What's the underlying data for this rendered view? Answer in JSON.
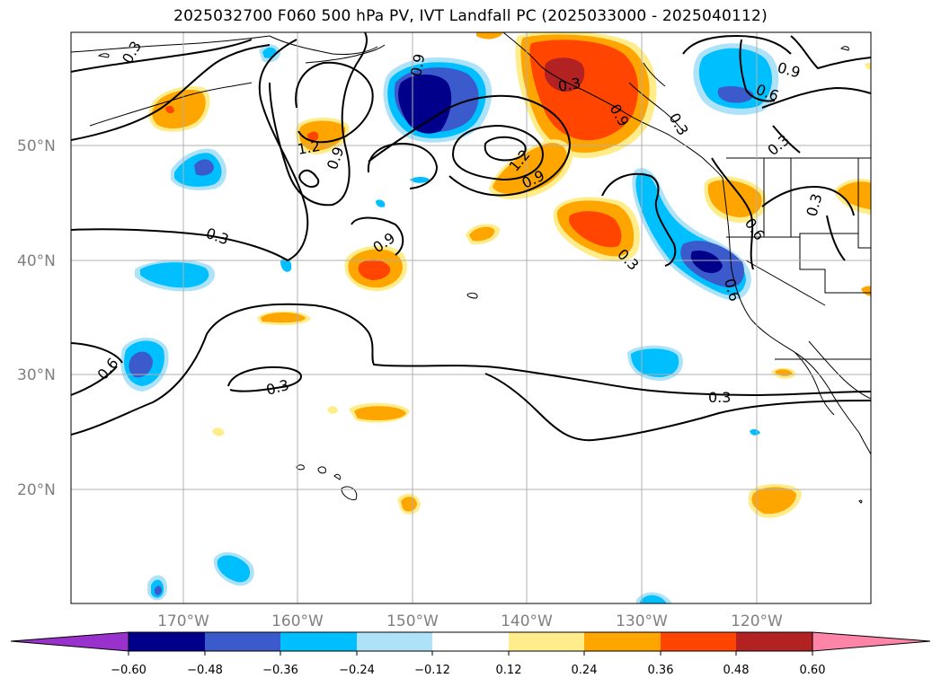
{
  "title": "2025032700 F060 500 hPa PV, IVT Landfall PC (2025033000 - 2025040112)",
  "map": {
    "lat_labels": [
      "50°N",
      "40°N",
      "30°N",
      "20°N"
    ],
    "lon_labels": [
      "170°W",
      "160°W",
      "150°W",
      "140°W",
      "130°W",
      "120°W"
    ],
    "contour_labels": [
      "0.3",
      "0.9",
      "1.2",
      "0.9",
      "0.3",
      "0.9",
      "0.3",
      "0.6",
      "0.9",
      "0.6",
      "0.3",
      "0.3",
      "0.3",
      "0.6",
      "0.9",
      "0.3",
      "0.3",
      "0.6",
      "0.9",
      "1.2",
      "0.3"
    ],
    "grid": true
  },
  "colorbar": {
    "ticks": [
      "−0.60",
      "−0.48",
      "−0.36",
      "−0.24",
      "−0.12",
      "0.12",
      "0.24",
      "0.36",
      "0.48",
      "0.60"
    ],
    "colors": [
      "#9932cc",
      "#00008b",
      "#3b5bcc",
      "#00bfff",
      "#aee2f8",
      "#ffffff",
      "#ffec8b",
      "#ffa500",
      "#ff4500",
      "#b22222",
      "#ff85a8"
    ]
  },
  "field_colors": {
    "neg_light": "#aee2f8",
    "neg_mid": "#00bfff",
    "neg_strong": "#3b5bcc",
    "neg_max": "#00008b",
    "pos_light": "#ffec8b",
    "pos_mid": "#ffa500",
    "pos_strong": "#ff4500",
    "pos_max": "#b22222"
  }
}
